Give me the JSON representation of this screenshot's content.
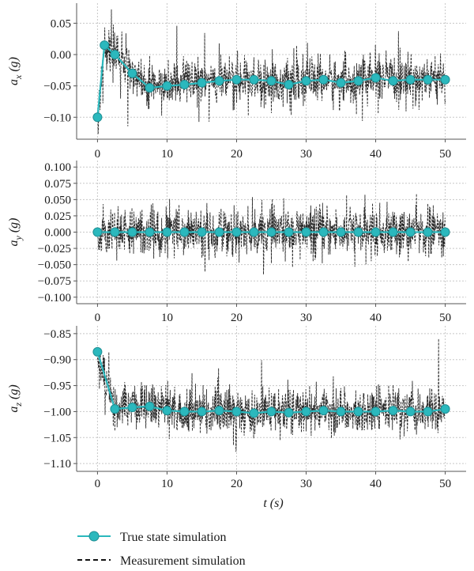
{
  "chart_data": [
    {
      "type": "line",
      "ylabel": "a_x (g)",
      "ylabel_parts": {
        "main": "a",
        "sub": "x",
        "unit": "(g)"
      },
      "xlim": [
        -3,
        53
      ],
      "ylim": [
        -0.135,
        0.082
      ],
      "xticks": [
        0,
        10,
        20,
        30,
        40,
        50
      ],
      "xtick_labels": [
        "0",
        "10",
        "20",
        "30",
        "40",
        "50"
      ],
      "yticks": [
        0.05,
        0.0,
        -0.05,
        -0.1
      ],
      "ytick_labels": [
        "0.05",
        "0.00",
        "−0.05",
        "−0.10"
      ],
      "grid": true,
      "series": [
        {
          "name": "True state simulation",
          "marker_x": [
            0,
            1,
            2.5,
            5,
            7.5,
            10,
            12.5,
            15,
            17.5,
            20,
            22.5,
            25,
            27.5,
            30,
            32.5,
            35,
            37.5,
            40,
            42.5,
            45,
            47.5,
            50
          ],
          "marker_y": [
            -0.1,
            0.015,
            0.0,
            -0.03,
            -0.053,
            -0.05,
            -0.048,
            -0.045,
            -0.042,
            -0.04,
            -0.04,
            -0.042,
            -0.048,
            -0.042,
            -0.04,
            -0.045,
            -0.042,
            -0.037,
            -0.042,
            -0.04,
            -0.04,
            -0.04
          ]
        },
        {
          "name": "Measurement simulation",
          "noise_amplitude": 0.034,
          "spike_extent": [
            -0.127,
            0.072
          ]
        }
      ]
    },
    {
      "type": "line",
      "ylabel": "a_y (g)",
      "ylabel_parts": {
        "main": "a",
        "sub": "y",
        "unit": "(g)"
      },
      "xlim": [
        -3,
        53
      ],
      "ylim": [
        -0.11,
        0.11
      ],
      "xticks": [
        0,
        10,
        20,
        30,
        40,
        50
      ],
      "xtick_labels": [
        "0",
        "10",
        "20",
        "30",
        "40",
        "50"
      ],
      "yticks": [
        0.1,
        0.075,
        0.05,
        0.025,
        0.0,
        -0.025,
        -0.05,
        -0.075,
        -0.1
      ],
      "ytick_labels": [
        "0.100",
        "0.075",
        "0.050",
        "0.025",
        "0.000",
        "−0.025",
        "−0.050",
        "−0.075",
        "−0.100"
      ],
      "grid": true,
      "series": [
        {
          "name": "True state simulation",
          "marker_x": [
            0,
            2.5,
            5,
            7.5,
            10,
            12.5,
            15,
            17.5,
            20,
            22.5,
            25,
            27.5,
            30,
            32.5,
            35,
            37.5,
            40,
            42.5,
            45,
            47.5,
            50
          ],
          "marker_y": [
            0,
            0,
            0,
            0,
            0,
            0,
            0,
            0,
            0,
            0,
            0,
            0,
            0,
            0,
            0,
            0,
            0,
            0,
            0,
            0,
            0
          ]
        },
        {
          "name": "Measurement simulation",
          "noise_amplitude": 0.034,
          "spike_extent": [
            -0.093,
            0.092
          ]
        }
      ]
    },
    {
      "type": "line",
      "ylabel": "a_z (g)",
      "ylabel_parts": {
        "main": "a",
        "sub": "z",
        "unit": "(g)"
      },
      "xlim": [
        -3,
        53
      ],
      "ylim": [
        -1.115,
        -0.835
      ],
      "xticks": [
        0,
        10,
        20,
        30,
        40,
        50
      ],
      "xtick_labels": [
        "0",
        "10",
        "20",
        "30",
        "40",
        "50"
      ],
      "yticks": [
        -0.85,
        -0.9,
        -0.95,
        -1.0,
        -1.05,
        -1.1
      ],
      "ytick_labels": [
        "−0.85",
        "−0.90",
        "−0.95",
        "−1.00",
        "−1.05",
        "−1.10"
      ],
      "grid": true,
      "series": [
        {
          "name": "True state simulation",
          "marker_x": [
            0,
            2.5,
            5,
            7.5,
            10,
            12.5,
            15,
            17.5,
            20,
            22.5,
            25,
            27.5,
            30,
            32.5,
            35,
            37.5,
            40,
            42.5,
            45,
            47.5,
            50
          ],
          "marker_y": [
            -0.885,
            -0.995,
            -0.992,
            -0.99,
            -0.998,
            -1.0,
            -1.0,
            -0.998,
            -1.0,
            -1.003,
            -1.0,
            -1.002,
            -1.0,
            -0.998,
            -1.0,
            -1.0,
            -1.0,
            -0.998,
            -1.0,
            -1.0,
            -0.995
          ]
        },
        {
          "name": "Measurement simulation",
          "noise_amplitude": 0.042,
          "spike_extent": [
            -1.095,
            -0.84
          ]
        }
      ]
    }
  ],
  "xlabel": "t (s)",
  "xlabel_parts": {
    "main": "t",
    "unit": "(s)"
  },
  "legend": {
    "placement": "bottom-left",
    "entries": [
      {
        "label": "True state simulation",
        "style": "solid-line-circle-marker"
      },
      {
        "label": "Measurement simulation",
        "style": "dashed-line"
      }
    ]
  },
  "colors": {
    "true_state": "#2bb8bd",
    "true_state_edge": "#1f8f94",
    "measurement": "#111111",
    "panel_background": "#ffffff",
    "grid": "#c8c8c8",
    "axis": "#555555"
  }
}
